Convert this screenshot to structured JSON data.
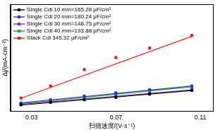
{
  "chart_data": {
    "type": "scatter",
    "x_label": "扫描速度/(V·s⁻¹)",
    "y_label": "Δj/(mA·cm⁻²)",
    "x": [
      0.025,
      0.039,
      0.055,
      0.07,
      0.086,
      0.106
    ],
    "xlim": [
      0.02,
      0.116
    ],
    "xticks": [
      0.03,
      0.07,
      0.11
    ],
    "ylim": [
      0,
      1.4
    ],
    "yticks": [],
    "tick_labels": "x",
    "grid": false,
    "legend": "top-left",
    "marker": "square",
    "line_style": "solid",
    "series": [
      {
        "name": "Single Cdl 10 mm=165.28 μF/cm²",
        "color": "#000000",
        "values": [
          0.083,
          0.116,
          0.149,
          0.182,
          0.223,
          0.273
        ],
        "fit": {
          "x": [
            0.025,
            0.106
          ],
          "y": [
            0.08,
            0.27
          ]
        }
      },
      {
        "name": "Single Cdl 20 mm=180.24 μF/cm²",
        "color": "#1f3fbf",
        "values": [
          0.107,
          0.149,
          0.198,
          0.24,
          0.281,
          0.331
        ],
        "fit": {
          "x": [
            0.025,
            0.106
          ],
          "y": [
            0.11,
            0.33
          ]
        }
      },
      {
        "name": "Single Cdl 30 mm=148.75 μF/cm²",
        "color": "#7a3d9e",
        "values": [
          0.091,
          0.132,
          0.165,
          0.207,
          0.24,
          0.289
        ],
        "fit": {
          "x": [
            0.025,
            0.106
          ],
          "y": [
            0.09,
            0.28
          ]
        }
      },
      {
        "name": "Single Cdl 40 mm=193.88 μF/cm²",
        "color": "#2e9a3a",
        "values": [
          0.099,
          0.14,
          0.19,
          0.231,
          0.273,
          0.322
        ],
        "fit": {
          "x": [
            0.025,
            0.106
          ],
          "y": [
            0.1,
            0.32
          ]
        }
      },
      {
        "name": "Stack Cdl 345.32 μF/cm²",
        "color": "#e0211f",
        "values": [
          0.174,
          0.331,
          0.545,
          0.702,
          0.826,
          0.992
        ],
        "fit": {
          "x": [
            0.025,
            0.106
          ],
          "y": [
            0.17,
            0.98
          ]
        }
      }
    ]
  }
}
